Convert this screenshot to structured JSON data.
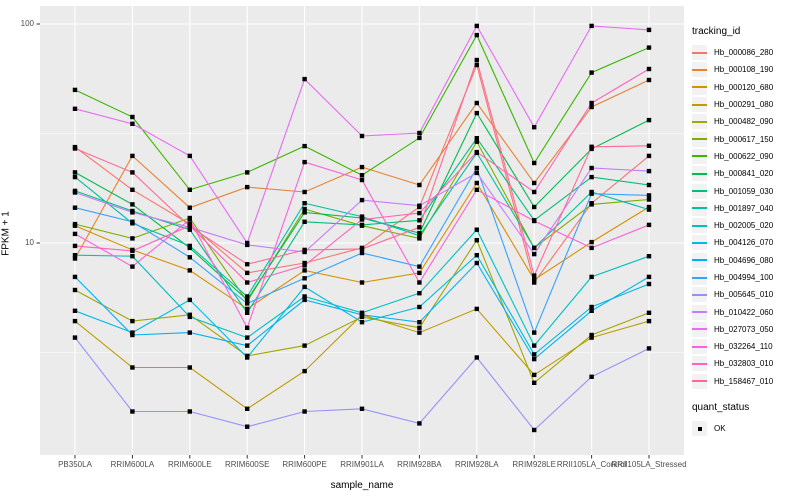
{
  "chart_data": {
    "type": "line",
    "title": "",
    "xlabel": "sample_name",
    "ylabel": "FPKM + 1",
    "yscale": "log10",
    "yticks": [
      100,
      10
    ],
    "minor_gridlines_at": [
      31.623,
      3.1623
    ],
    "ylim_log": [
      1.08,
      120
    ],
    "grid": true,
    "panel_bg": "#EBEBEB",
    "grid_color": "#FFFFFF",
    "point_shape": "filled-square",
    "point_color": "#000000",
    "legend": {
      "position": "right",
      "color_title": "tracking_id",
      "shape_title": "quant_status",
      "shape_entries": [
        {
          "label": "OK"
        }
      ]
    },
    "categories": [
      "PB350LA",
      "RRIM600LA",
      "RRIM600LE",
      "RRIM600SE",
      "RRIM600PE",
      "RRIM901LA",
      "RRIM928BA",
      "RRIM928LA",
      "RRIM928LE",
      "RRII105LA_Control",
      "RRII105LA_Stressed"
    ],
    "series": [
      {
        "name": "Hb_000086_280",
        "color": "#F8766D",
        "values": [
          27.4,
          17.5,
          12.2,
          7.3,
          8.1,
          9.5,
          14.6,
          65,
          6.6,
          15.2,
          25
        ]
      },
      {
        "name": "Hb_000108_190",
        "color": "#EA8331",
        "values": [
          8.5,
          25,
          14.5,
          18,
          17.1,
          22.2,
          18.4,
          43.6,
          18.8,
          41.8,
          55.5
        ]
      },
      {
        "name": "Hb_000120_680",
        "color": "#D89000",
        "values": [
          12,
          9.3,
          7.5,
          5.0,
          7.5,
          6.6,
          7.3,
          18.8,
          6.8,
          10.1,
          14.6
        ]
      },
      {
        "name": "Hb_000291_080",
        "color": "#C09B00",
        "values": [
          4.4,
          2.7,
          2.7,
          1.75,
          2.6,
          4.7,
          3.9,
          5.0,
          2.5,
          3.7,
          4.4
        ]
      },
      {
        "name": "Hb_000482_090",
        "color": "#A3A500",
        "values": [
          6.1,
          4.4,
          4.7,
          3.05,
          3.4,
          4.6,
          4.1,
          10.3,
          2.3,
          3.8,
          4.8
        ]
      },
      {
        "name": "Hb_000617_150",
        "color": "#7CAE00",
        "values": [
          12.2,
          10.5,
          13,
          5.4,
          14.3,
          12,
          10.5,
          29,
          9.5,
          15,
          15.8
        ]
      },
      {
        "name": "Hb_000622_090",
        "color": "#39B600",
        "values": [
          50,
          37.6,
          17.5,
          21,
          27.7,
          20.4,
          30.2,
          89,
          23.2,
          60,
          78
        ]
      },
      {
        "name": "Hb_000841_020",
        "color": "#00BB4E",
        "values": [
          21,
          15,
          9.5,
          5.5,
          13.8,
          13,
          11.1,
          39.2,
          14.6,
          26.9,
          36.4
        ]
      },
      {
        "name": "Hb_001059_030",
        "color": "#00BF7D",
        "values": [
          17.3,
          14,
          11.5,
          4.8,
          12.5,
          12.1,
          12.7,
          30.1,
          12.7,
          20,
          18.4
        ]
      },
      {
        "name": "Hb_001897_040",
        "color": "#00C1A3",
        "values": [
          20,
          12.3,
          9.7,
          5.7,
          15.2,
          13.2,
          10.8,
          25.8,
          9.5,
          17.1,
          14.2
        ]
      },
      {
        "name": "Hb_002005_020",
        "color": "#00BFC4",
        "values": [
          8.8,
          8.7,
          4.6,
          3.7,
          5.7,
          4.8,
          5.9,
          11.5,
          3.4,
          7.0,
          8.7
        ]
      },
      {
        "name": "Hb_004126_070",
        "color": "#00BAE0",
        "values": [
          4.9,
          3.9,
          5.5,
          3.0,
          6.3,
          4.35,
          5.1,
          8.8,
          3.1,
          5.1,
          6.5
        ]
      },
      {
        "name": "Hb_004696_080",
        "color": "#00B0F6",
        "values": [
          7.0,
          3.8,
          3.9,
          3.4,
          5.5,
          4.7,
          4.35,
          8.1,
          2.95,
          4.9,
          7.0
        ]
      },
      {
        "name": "Hb_004994_100",
        "color": "#35A2FF",
        "values": [
          14.5,
          12.5,
          8.6,
          5.3,
          6.9,
          9.0,
          7.8,
          22,
          3.9,
          16.8,
          16.5
        ]
      },
      {
        "name": "Hb_005645_010",
        "color": "#9590FF",
        "values": [
          3.7,
          1.7,
          1.7,
          1.45,
          1.7,
          1.75,
          1.5,
          3.0,
          1.4,
          2.45,
          3.3
        ]
      },
      {
        "name": "Hb_010422_060",
        "color": "#C77CFF",
        "values": [
          17.0,
          13.8,
          11.8,
          9.8,
          9.1,
          15.7,
          14.8,
          20.9,
          8.9,
          22,
          21.3
        ]
      },
      {
        "name": "Hb_027073_050",
        "color": "#E76BF3",
        "values": [
          41,
          35,
          25,
          10,
          56,
          30.8,
          31.8,
          98,
          33.8,
          98,
          94
        ]
      },
      {
        "name": "Hb_032264_110",
        "color": "#FA62DB",
        "values": [
          11,
          7.8,
          12.8,
          4.1,
          23.4,
          19.4,
          6.6,
          17.5,
          12.6,
          9.5,
          12.1
        ]
      },
      {
        "name": "Hb_032803_010",
        "color": "#FF62BC",
        "values": [
          9.7,
          9.2,
          12.0,
          6.6,
          7.9,
          12.8,
          13.7,
          26,
          17.1,
          43.6,
          62.3
        ]
      },
      {
        "name": "Hb_158467_010",
        "color": "#FF6A98",
        "values": [
          27,
          21,
          11.9,
          8,
          9.3,
          9.4,
          11.8,
          68.5,
          7.1,
          27.5,
          27.8
        ]
      }
    ]
  }
}
